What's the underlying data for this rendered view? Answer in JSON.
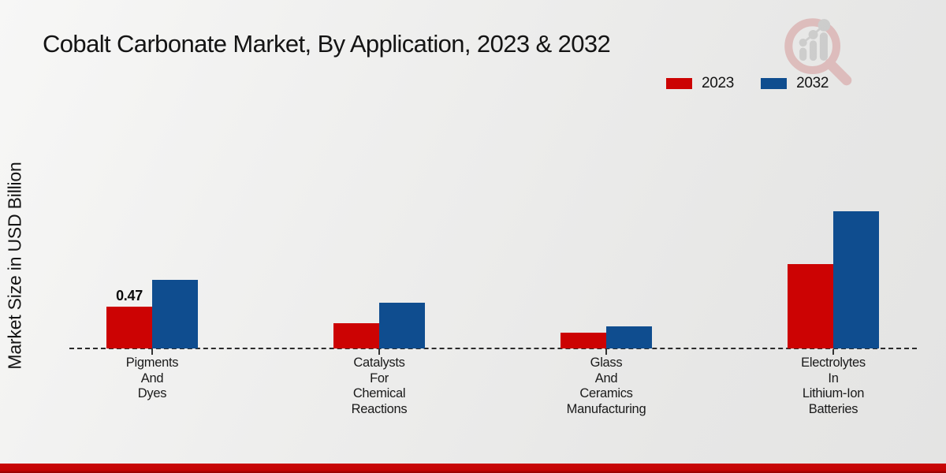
{
  "page": {
    "title": "Cobalt Carbonate Market, By Application, 2023 & 2032",
    "y_axis_label": "Market Size in USD Billion"
  },
  "legend": {
    "items": [
      {
        "label": "2023",
        "color": "#cc0303"
      },
      {
        "label": "2032",
        "color": "#0f4d8f"
      }
    ]
  },
  "chart_data": {
    "type": "bar",
    "title": "Cobalt Carbonate Market, By Application, 2023 & 2032",
    "xlabel": "",
    "ylabel": "Market Size in USD Billion",
    "categories": [
      "Pigments And Dyes",
      "Catalysts For Chemical Reactions",
      "Glass And Ceramics Manufacturing",
      "Electrolytes In Lithium-Ion Batteries"
    ],
    "category_label_lines": [
      [
        "Pigments",
        "And",
        "Dyes"
      ],
      [
        "Catalysts",
        "For",
        "Chemical",
        "Reactions"
      ],
      [
        "Glass",
        "And",
        "Ceramics",
        "Manufacturing"
      ],
      [
        "Electrolytes",
        "In",
        "Lithium-Ion",
        "Batteries"
      ]
    ],
    "series": [
      {
        "name": "2023",
        "color": "#cc0303",
        "values": [
          0.47,
          0.28,
          0.18,
          0.95
        ]
      },
      {
        "name": "2032",
        "color": "#0f4d8f",
        "values": [
          0.77,
          0.51,
          0.25,
          1.54
        ]
      }
    ],
    "data_labels": [
      {
        "series_index": 0,
        "category_index": 0,
        "text": "0.47"
      }
    ],
    "ylim": [
      0,
      1.75
    ],
    "grid": false,
    "axis_style": "dashed-baseline-only",
    "legend_position": "top-right"
  },
  "branding": {
    "watermark_icon": "magnifier-trend-chart-logo",
    "footer_bar_color": "#c40505"
  }
}
